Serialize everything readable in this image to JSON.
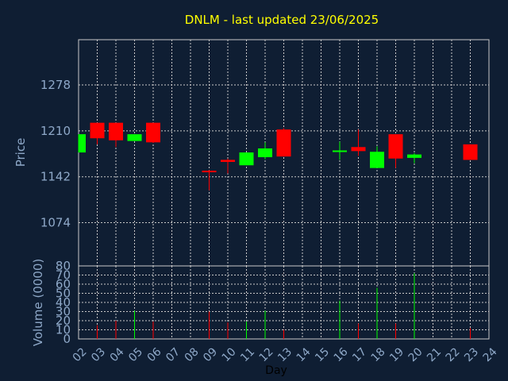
{
  "chart_data": [
    {
      "type": "candlestick",
      "title": "DNLM - last updated 23/06/2025",
      "ylabel": "Price",
      "ylim": [
        1010,
        1345
      ],
      "yticks": [
        1074,
        1142,
        1210,
        1278
      ],
      "grid": true,
      "colors": {
        "up": "#00ff00",
        "down": "#ff0000",
        "background": "#0f1e33",
        "grid": "#c8c8c8",
        "text": "#8ea8c8",
        "title": "#ffff00"
      },
      "candles": [
        {
          "day": "02",
          "open": 1178,
          "high": 1205,
          "low": 1178,
          "close": 1205
        },
        {
          "day": "03",
          "open": 1222,
          "high": 1222,
          "low": 1190,
          "close": 1199
        },
        {
          "day": "04",
          "open": 1222,
          "high": 1222,
          "low": 1186,
          "close": 1196
        },
        {
          "day": "05",
          "open": 1195,
          "high": 1205,
          "low": 1195,
          "close": 1205
        },
        {
          "day": "06",
          "open": 1222,
          "high": 1222,
          "low": 1192,
          "close": 1193
        },
        {
          "day": "09",
          "open": 1151,
          "high": 1152,
          "low": 1122,
          "close": 1149
        },
        {
          "day": "10",
          "open": 1167,
          "high": 1169,
          "low": 1147,
          "close": 1164
        },
        {
          "day": "11",
          "open": 1159,
          "high": 1178,
          "low": 1159,
          "close": 1178
        },
        {
          "day": "12",
          "open": 1171,
          "high": 1193,
          "low": 1168,
          "close": 1184
        },
        {
          "day": "13",
          "open": 1212,
          "high": 1214,
          "low": 1172,
          "close": 1172
        },
        {
          "day": "16",
          "open": 1180,
          "high": 1194,
          "low": 1167,
          "close": 1181
        },
        {
          "day": "17",
          "open": 1186,
          "high": 1212,
          "low": 1173,
          "close": 1180
        },
        {
          "day": "18",
          "open": 1155,
          "high": 1187,
          "low": 1155,
          "close": 1179
        },
        {
          "day": "19",
          "open": 1205,
          "high": 1205,
          "low": 1155,
          "close": 1169
        },
        {
          "day": "20",
          "open": 1170,
          "high": 1177,
          "low": 1162,
          "close": 1175
        },
        {
          "day": "23",
          "open": 1190,
          "high": 1190,
          "low": 1167,
          "close": 1167
        }
      ]
    },
    {
      "type": "bar",
      "ylabel": "Volume (0000)",
      "xlabel": "Day",
      "ylim": [
        0,
        80
      ],
      "yticks": [
        0,
        10,
        20,
        30,
        40,
        50,
        60,
        70,
        80
      ],
      "categories": [
        "02",
        "03",
        "04",
        "05",
        "06",
        "07",
        "08",
        "09",
        "10",
        "11",
        "12",
        "13",
        "14",
        "15",
        "16",
        "17",
        "18",
        "19",
        "20",
        "21",
        "22",
        "23",
        "24"
      ],
      "values": [
        0,
        15,
        20,
        31,
        19,
        0,
        0,
        30,
        18,
        19,
        31,
        10,
        0,
        0,
        42,
        17,
        56,
        17,
        72,
        0,
        0,
        12,
        0
      ]
    }
  ]
}
